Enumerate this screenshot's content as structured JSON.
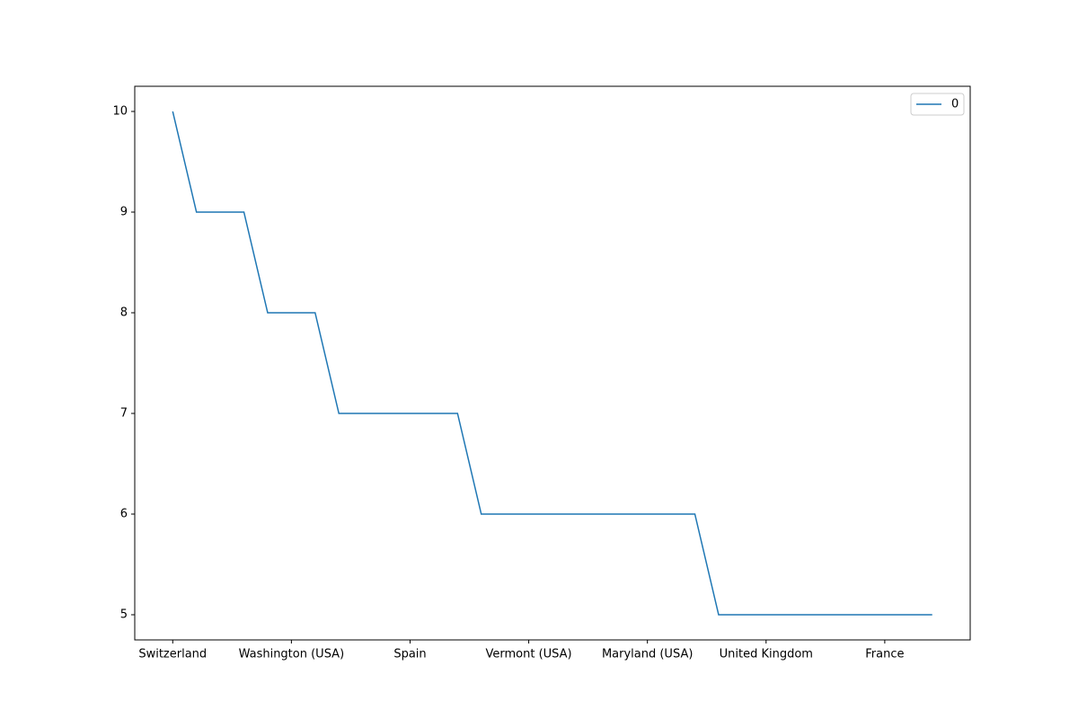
{
  "chart_data": {
    "type": "line",
    "categories": [
      "Switzerland",
      null,
      null,
      null,
      null,
      "Washington (USA)",
      null,
      null,
      null,
      null,
      "Spain",
      null,
      null,
      null,
      null,
      "Vermont (USA)",
      null,
      null,
      null,
      null,
      "Maryland (USA)",
      null,
      null,
      null,
      null,
      "United Kingdom",
      null,
      null,
      null,
      null,
      "France",
      null,
      null
    ],
    "series": [
      {
        "name": "0",
        "color": "#1f77b4",
        "values": [
          10,
          9,
          9,
          9,
          8,
          8,
          8,
          7,
          7,
          7,
          7,
          7,
          7,
          6,
          6,
          6,
          6,
          6,
          6,
          6,
          6,
          6,
          6,
          5,
          5,
          5,
          5,
          5,
          5,
          5,
          5,
          5,
          5
        ]
      }
    ],
    "xlim": [
      -1.6,
      33.6
    ],
    "ylim": [
      4.75,
      10.25
    ],
    "yticks": [
      5,
      6,
      7,
      8,
      9,
      10
    ],
    "grid": false,
    "legend": "upper right"
  }
}
